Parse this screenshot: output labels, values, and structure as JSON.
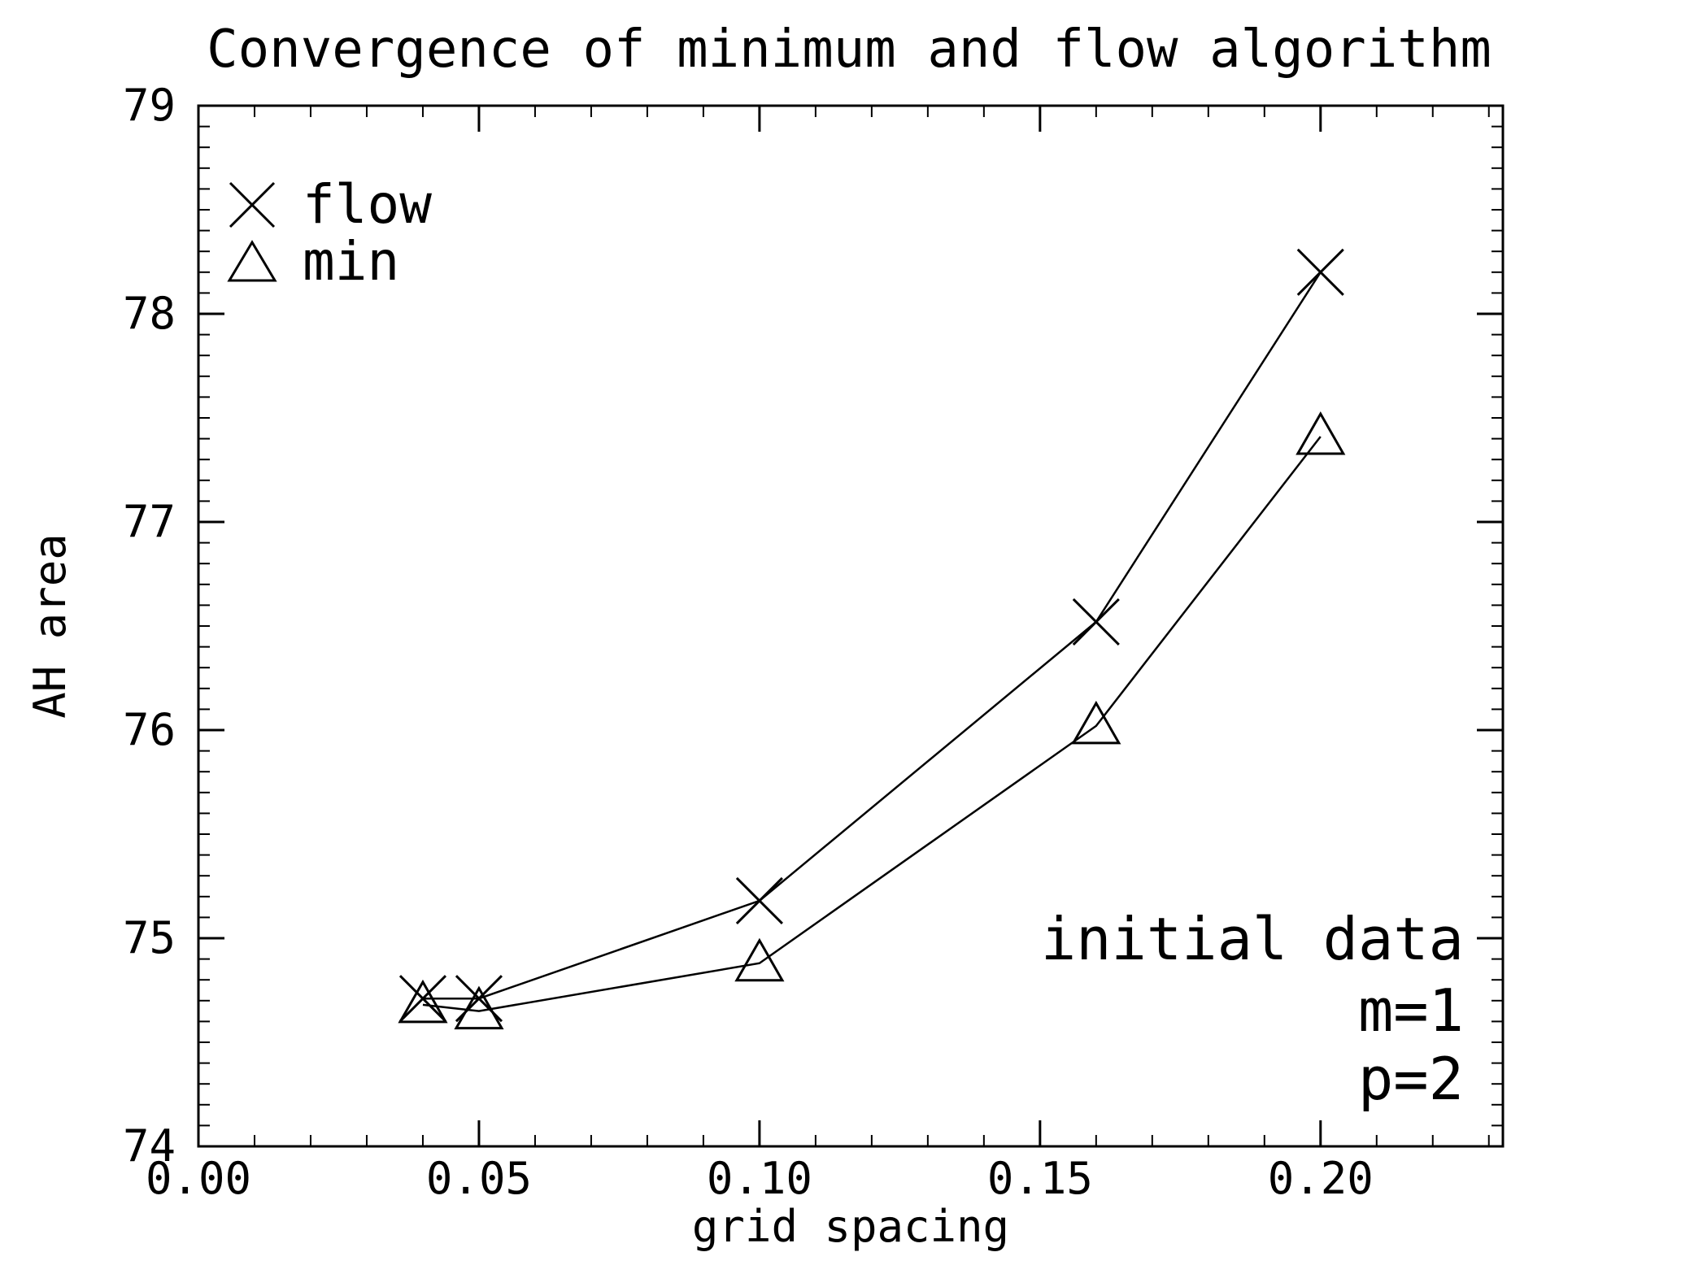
{
  "chart_data": {
    "type": "line",
    "title": "Convergence of minimum and flow algorithm",
    "xlabel": "grid spacing",
    "ylabel": "AH area",
    "xlim": [
      0.0,
      0.2325
    ],
    "ylim": [
      74,
      79
    ],
    "x_ticks": [
      0.0,
      0.05,
      0.1,
      0.15,
      0.2
    ],
    "x_tick_labels": [
      "0.00",
      "0.05",
      "0.10",
      "0.15",
      "0.20"
    ],
    "y_ticks": [
      74,
      75,
      76,
      77,
      78,
      79
    ],
    "y_tick_labels": [
      "74",
      "75",
      "76",
      "77",
      "78",
      "79"
    ],
    "x_minor_step": 0.01,
    "y_minor_step": 0.1,
    "grid": false,
    "legend_position": "top-left",
    "series": [
      {
        "name": "flow",
        "marker": "x",
        "x": [
          0.04,
          0.05,
          0.1,
          0.16,
          0.2
        ],
        "y": [
          74.71,
          74.71,
          75.18,
          76.52,
          78.2
        ]
      },
      {
        "name": "min",
        "marker": "triangle",
        "x": [
          0.04,
          0.05,
          0.1,
          0.16,
          0.2
        ],
        "y": [
          74.68,
          74.65,
          74.88,
          76.02,
          77.41
        ]
      }
    ],
    "annotations": [
      "initial data",
      "m=1",
      "p=2"
    ]
  }
}
